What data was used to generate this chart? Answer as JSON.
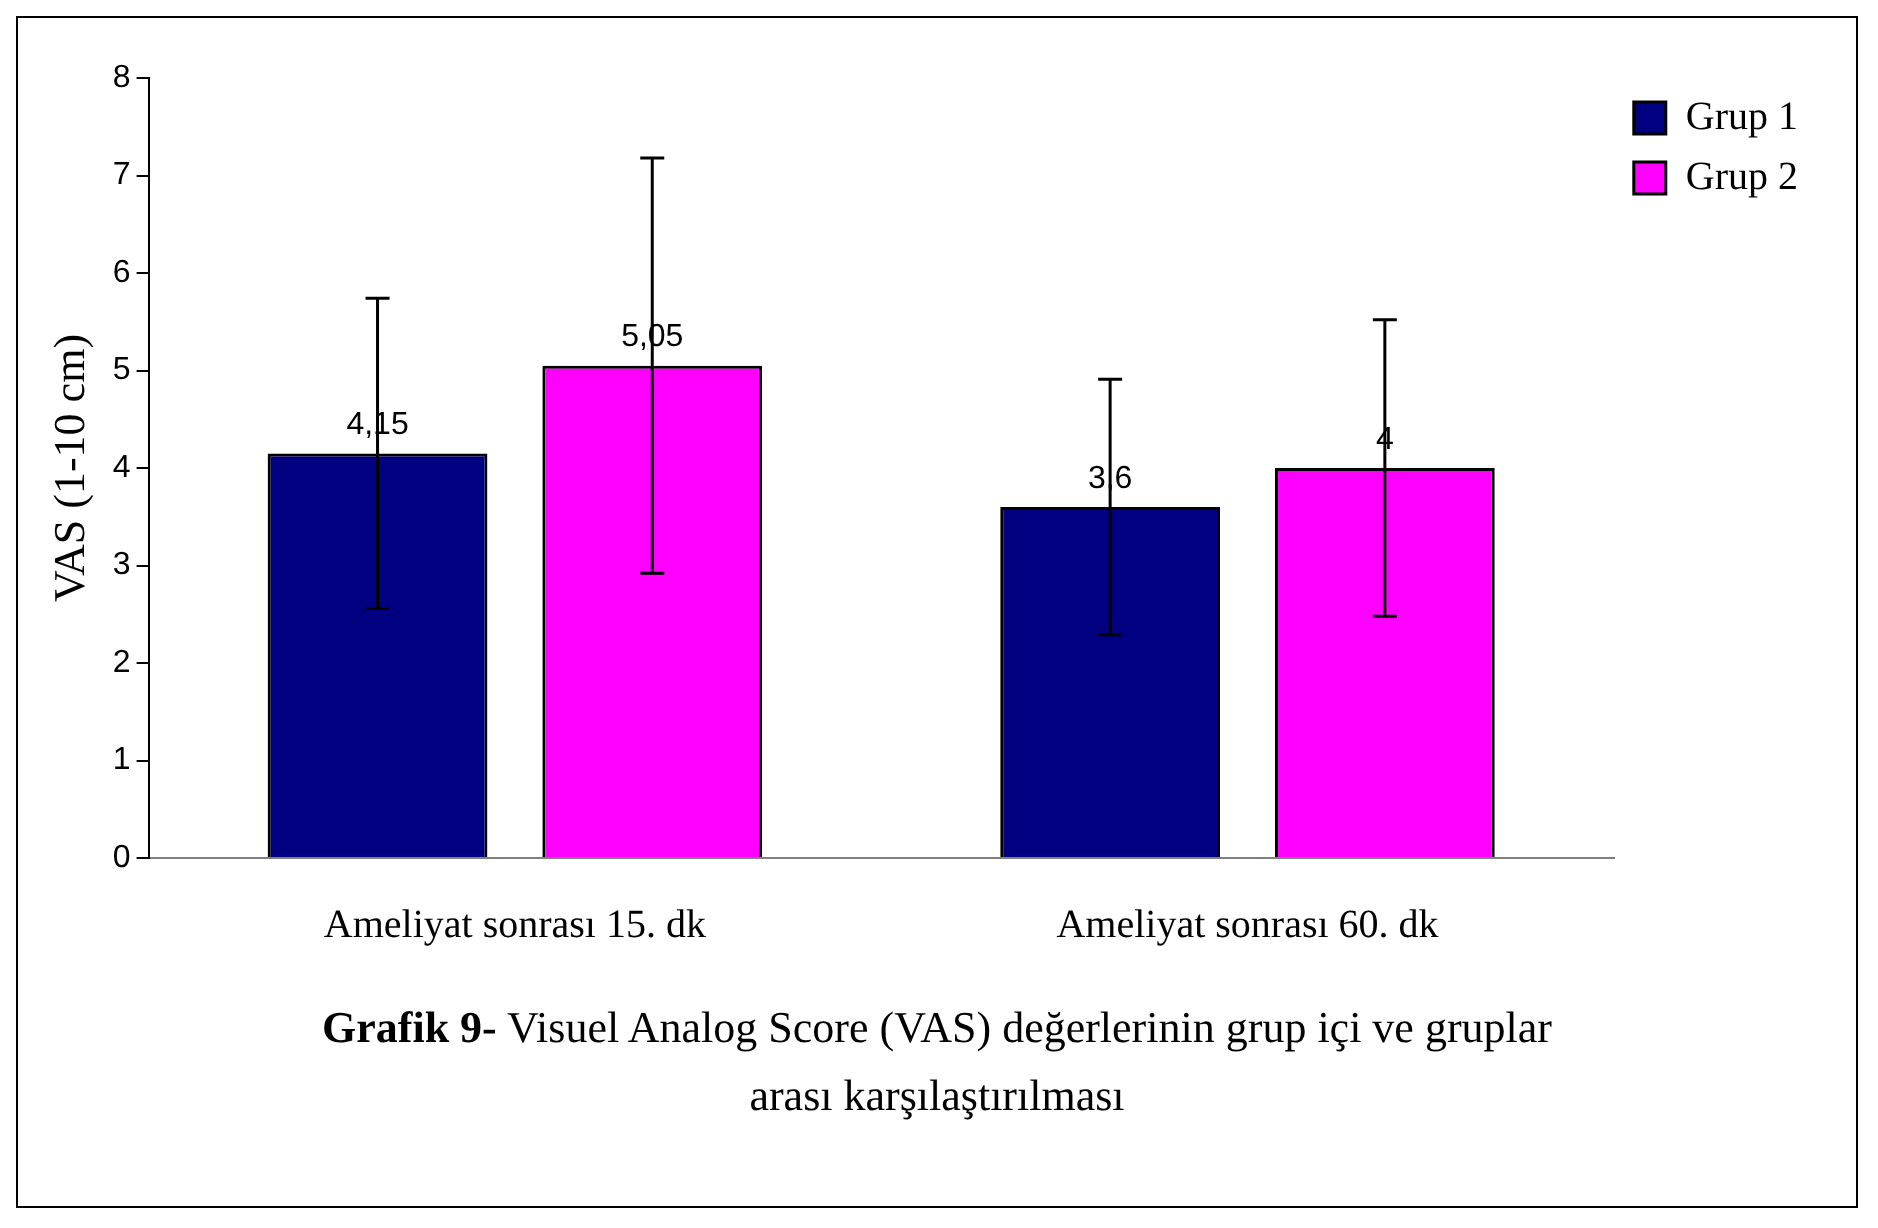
{
  "chart_data": {
    "type": "bar",
    "title": "Grafik 9- Visuel Analog Score (VAS) değerlerinin grup içi ve gruplar arası karşılaştırılması",
    "ylabel": "VAS (1-10 cm)",
    "categories": [
      "Ameliyat sonrası 15. dk",
      "Ameliyat sonrası 60. dk"
    ],
    "series": [
      {
        "name": "Grup 1",
        "color": "#000080",
        "values": [
          4.15,
          3.6
        ],
        "value_labels": [
          "4,15",
          "3,6"
        ],
        "errors": [
          1.59,
          1.31
        ]
      },
      {
        "name": "Grup 2",
        "color": "#ff00ff",
        "values": [
          5.05,
          4
        ],
        "value_labels": [
          "5,05",
          "4"
        ],
        "errors": [
          2.13,
          1.52
        ]
      }
    ],
    "ylim": [
      0,
      8
    ],
    "yticks": [
      0,
      1,
      2,
      3,
      4,
      5,
      6,
      7,
      8
    ],
    "grid": false,
    "legend": "top right"
  }
}
